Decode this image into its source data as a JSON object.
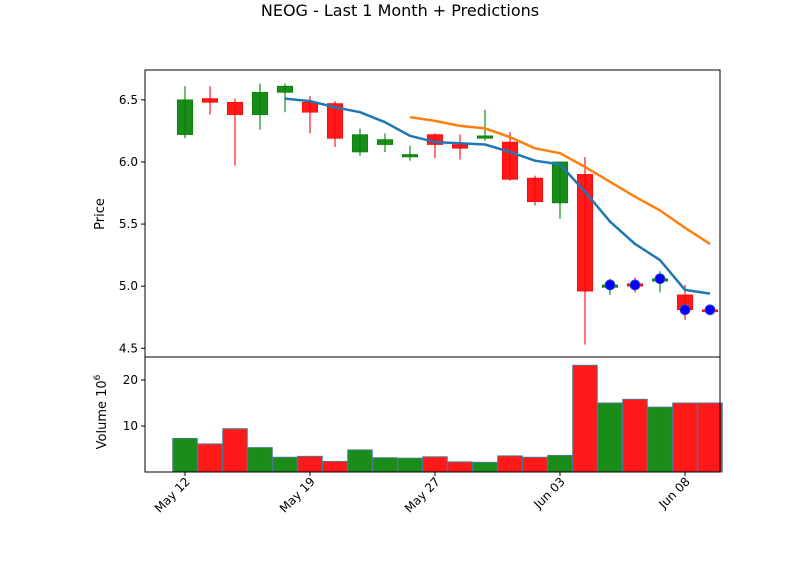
{
  "chart_data": {
    "type": "candlestick",
    "title": "NEOG - Last 1 Month + Predictions",
    "price_panel": {
      "ylabel": "Price",
      "ylim": [
        4.43,
        6.74
      ],
      "yticks": [
        "4.5",
        "5.0",
        "5.5",
        "6.0",
        "6.5"
      ],
      "ytick_values": [
        4.5,
        5.0,
        5.5,
        6.0,
        6.5
      ]
    },
    "volume_panel": {
      "ylabel": "Volume  10",
      "ylabel_exponent": "6",
      "ylim": [
        0,
        25
      ],
      "yticks": [
        "10",
        "20"
      ],
      "ytick_values": [
        10,
        20
      ]
    },
    "x_index_range": [
      -1.6,
      21.4
    ],
    "xticks": [
      {
        "label": "May 12",
        "index": 0
      },
      {
        "label": "May 19",
        "index": 5
      },
      {
        "label": "May 27",
        "index": 10
      },
      {
        "label": "Jun 03",
        "index": 15
      },
      {
        "label": "Jun 08",
        "index": 20
      }
    ],
    "colors": {
      "up": "#008000",
      "down": "#ff0000",
      "ma_short": "#1f77b4",
      "ma_long": "#ff7f0e",
      "prediction": "#0000ff"
    },
    "candles": [
      {
        "open": 6.22,
        "high": 6.61,
        "low": 6.19,
        "close": 6.5,
        "volume": 7.3
      },
      {
        "open": 6.51,
        "high": 6.61,
        "low": 6.38,
        "close": 6.48,
        "volume": 6.1
      },
      {
        "open": 6.48,
        "high": 6.51,
        "low": 5.97,
        "close": 6.38,
        "volume": 9.4
      },
      {
        "open": 6.38,
        "high": 6.63,
        "low": 6.26,
        "close": 6.56,
        "volume": 5.3
      },
      {
        "open": 6.56,
        "high": 6.63,
        "low": 6.4,
        "close": 6.61,
        "volume": 3.2
      },
      {
        "open": 6.48,
        "high": 6.53,
        "low": 6.23,
        "close": 6.4,
        "volume": 3.4
      },
      {
        "open": 6.47,
        "high": 6.49,
        "low": 6.12,
        "close": 6.19,
        "volume": 2.3
      },
      {
        "open": 6.08,
        "high": 6.27,
        "low": 6.05,
        "close": 6.22,
        "volume": 4.8
      },
      {
        "open": 6.14,
        "high": 6.23,
        "low": 6.08,
        "close": 6.18,
        "volume": 3.1
      },
      {
        "open": 6.04,
        "high": 6.13,
        "low": 6.01,
        "close": 6.06,
        "volume": 3.0
      },
      {
        "open": 6.22,
        "high": 6.23,
        "low": 6.03,
        "close": 6.14,
        "volume": 3.3
      },
      {
        "open": 6.14,
        "high": 6.22,
        "low": 6.02,
        "close": 6.11,
        "volume": 2.2
      },
      {
        "open": 6.19,
        "high": 6.42,
        "low": 6.17,
        "close": 6.21,
        "volume": 2.1
      },
      {
        "open": 6.16,
        "high": 6.24,
        "low": 5.85,
        "close": 5.86,
        "volume": 3.5
      },
      {
        "open": 5.87,
        "high": 5.89,
        "low": 5.65,
        "close": 5.68,
        "volume": 3.2
      },
      {
        "open": 5.67,
        "high": 6.0,
        "low": 5.54,
        "close": 6.0,
        "volume": 3.6
      },
      {
        "open": 5.9,
        "high": 6.04,
        "low": 4.53,
        "close": 4.96,
        "volume": 23.2
      },
      {
        "open": 4.99,
        "high": 5.06,
        "low": 4.93,
        "close": 5.01,
        "volume": 15.0
      },
      {
        "open": 5.02,
        "high": 5.07,
        "low": 4.95,
        "close": 5.0,
        "volume": 15.8
      },
      {
        "open": 5.04,
        "high": 5.12,
        "low": 4.95,
        "close": 5.06,
        "volume": 14.1
      },
      {
        "open": 4.93,
        "high": 5.01,
        "low": 4.73,
        "close": 4.81,
        "volume": 15.0
      },
      {
        "open": 4.81,
        "high": 4.81,
        "low": 4.8,
        "close": 4.8,
        "volume": 15.0
      }
    ],
    "ma_short": [
      {
        "index": 4,
        "value": 6.51
      },
      {
        "index": 5,
        "value": 6.49
      },
      {
        "index": 6,
        "value": 6.44
      },
      {
        "index": 7,
        "value": 6.4
      },
      {
        "index": 8,
        "value": 6.32
      },
      {
        "index": 9,
        "value": 6.21
      },
      {
        "index": 10,
        "value": 6.16
      },
      {
        "index": 11,
        "value": 6.15
      },
      {
        "index": 12,
        "value": 6.14
      },
      {
        "index": 13,
        "value": 6.08
      },
      {
        "index": 14,
        "value": 6.01
      },
      {
        "index": 15,
        "value": 5.98
      },
      {
        "index": 16,
        "value": 5.76
      },
      {
        "index": 17,
        "value": 5.52
      },
      {
        "index": 18,
        "value": 5.34
      },
      {
        "index": 19,
        "value": 5.21
      },
      {
        "index": 20,
        "value": 4.97
      },
      {
        "index": 21,
        "value": 4.94
      }
    ],
    "ma_long": [
      {
        "index": 9,
        "value": 6.36
      },
      {
        "index": 10,
        "value": 6.33
      },
      {
        "index": 11,
        "value": 6.29
      },
      {
        "index": 12,
        "value": 6.27
      },
      {
        "index": 13,
        "value": 6.2
      },
      {
        "index": 14,
        "value": 6.11
      },
      {
        "index": 15,
        "value": 6.07
      },
      {
        "index": 16,
        "value": 5.96
      },
      {
        "index": 17,
        "value": 5.84
      },
      {
        "index": 18,
        "value": 5.72
      },
      {
        "index": 19,
        "value": 5.61
      },
      {
        "index": 20,
        "value": 5.47
      },
      {
        "index": 21,
        "value": 5.34
      }
    ],
    "predictions": [
      {
        "index": 17,
        "value": 5.01
      },
      {
        "index": 18,
        "value": 5.01
      },
      {
        "index": 19,
        "value": 5.06
      },
      {
        "index": 20,
        "value": 4.81
      },
      {
        "index": 21,
        "value": 4.81
      }
    ]
  }
}
